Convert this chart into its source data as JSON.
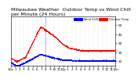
{
  "title": "Milwaukee Weather  Outdoor Temp vs Wind Chill",
  "bg_color": "#ffffff",
  "plot_bg": "#ffffff",
  "grid_color": "#cccccc",
  "outdoor_temp_color": "#ff0000",
  "wind_chill_color": "#0000ff",
  "ylim": [
    5,
    60
  ],
  "yticks": [
    10,
    20,
    30,
    40,
    50
  ],
  "vline_x": 480,
  "x_tick_positions": [
    0,
    60,
    120,
    180,
    240,
    300,
    360,
    420,
    480,
    540,
    600,
    660,
    720,
    780,
    840,
    900,
    960,
    1020,
    1080,
    1140,
    1200,
    1260,
    1320,
    1380,
    1440
  ],
  "x_tick_labels": [
    "12a",
    "1",
    "2",
    "3",
    "4",
    "5",
    "6",
    "7",
    "8",
    "9",
    "10",
    "11",
    "12p",
    "1",
    "2",
    "3",
    "4",
    "5",
    "6",
    "7",
    "8",
    "9",
    "10",
    "11",
    "12a"
  ],
  "title_fontsize": 4.5,
  "tick_fontsize": 3.0,
  "marker_size": 0.5
}
